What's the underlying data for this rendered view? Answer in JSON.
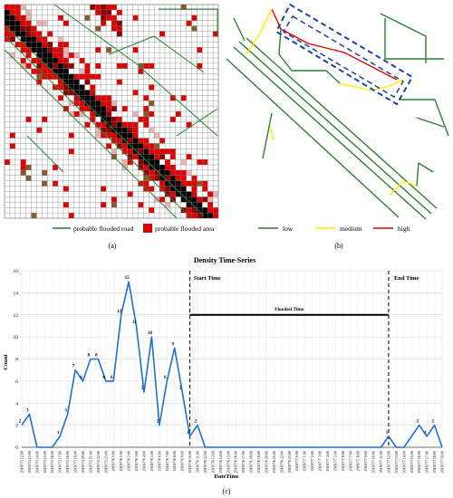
{
  "panel_a": {
    "caption": "(a)",
    "legend_road": "probable flooded road",
    "legend_area": "probable flooded area",
    "road_color": "#2e7d32",
    "flood_colors": [
      "#e00000",
      "#8b0000",
      "#000000",
      "#e8b4b4",
      "#8b5a2b"
    ]
  },
  "panel_b": {
    "caption": "(b)",
    "legend": [
      {
        "label": "low",
        "color": "#2e7d32"
      },
      {
        "label": "medium",
        "color": "#ffee00"
      },
      {
        "label": "high",
        "color": "#e00000"
      }
    ],
    "box_color": "#1f3fa8"
  },
  "panel_c": {
    "caption": "(c)"
  },
  "chart_data": {
    "type": "line",
    "title": "Density Time-Series",
    "xlabel": "DateTime",
    "ylabel": "Count",
    "ylim": [
      0,
      16
    ],
    "yticks": [
      0,
      2,
      4,
      6,
      8,
      10,
      12,
      14,
      16
    ],
    "grid": true,
    "series": [
      {
        "color": "#1f6fd1",
        "values": [
          2,
          3,
          0,
          0,
          0,
          1,
          3,
          7,
          6,
          8,
          8,
          6,
          6,
          12,
          15,
          11,
          5,
          10,
          2,
          6,
          9,
          5,
          1,
          2,
          0,
          0,
          0,
          0,
          0,
          0,
          0,
          0,
          0,
          0,
          0,
          0,
          0,
          0,
          0,
          0,
          0,
          0,
          0,
          0,
          0,
          0,
          0,
          0,
          1,
          0,
          0,
          1,
          2,
          1,
          2,
          0
        ]
      }
    ],
    "categories": [
      "2018/7/5 12:00",
      "2018/7/5 13:00",
      "2018/7/5 14:00",
      "2018/7/5 15:00",
      "2018/7/5 16:00",
      "2018/7/5 17:00",
      "2018/7/5 18:00",
      "2018/7/5 19:00",
      "2018/7/5 20:00",
      "2018/7/5 21:00",
      "2018/7/5 22:00",
      "2018/7/5 23:00",
      "2018/7/6 0:00",
      "2018/7/6 1:00",
      "2018/7/6 2:00",
      "2018/7/6 3:00",
      "2018/7/6 4:00",
      "2018/7/6 5:00",
      "2018/7/6 6:00",
      "2018/7/6 7:00",
      "2018/7/6 8:00",
      "2018/7/6 9:00",
      "2018/7/6 10:00",
      "2018/7/6 11:00",
      "2018/7/6 12:00",
      "2018/7/6 13:00",
      "2018/7/6 14:00",
      "2018/7/6 15:00",
      "2018/7/6 16:00",
      "2018/7/6 17:00",
      "2018/7/6 18:00",
      "2018/7/6 19:00",
      "2018/7/6 20:00",
      "2018/7/6 21:00",
      "2018/7/6 22:00",
      "2018/7/6 23:00",
      "2018/7/7 0:00",
      "2018/7/7 1:00",
      "2018/7/7 2:00",
      "2018/7/7 3:00",
      "2018/7/7 4:00",
      "2018/7/7 5:00",
      "2018/7/7 6:00",
      "2018/7/7 7:00",
      "2018/7/7 8:00",
      "2018/7/7 9:00",
      "2018/7/7 10:00",
      "2018/7/7 11:00",
      "2018/7/7 12:00",
      "2018/7/7 13:00",
      "2018/7/7 14:00",
      "2018/7/7 15:00",
      "2018/7/7 16:00",
      "2018/7/7 17:00",
      "2018/7/7 18:00",
      "2018/7/7 19:00"
    ],
    "labeled_points": [
      {
        "x": "2018/7/5 12:00",
        "y": 2,
        "label": "2"
      },
      {
        "x": "2018/7/5 13:00",
        "y": 3,
        "label": "3"
      },
      {
        "x": "2018/7/5 17:00",
        "y": 1,
        "label": "1"
      },
      {
        "x": "2018/7/5 18:00",
        "y": 3,
        "label": "3"
      },
      {
        "x": "2018/7/5 19:00",
        "y": 7,
        "label": "7"
      },
      {
        "x": "2018/7/5 20:00",
        "y": 6,
        "label": "6"
      },
      {
        "x": "2018/7/5 21:00",
        "y": 8,
        "label": "8"
      },
      {
        "x": "2018/7/5 22:00",
        "y": 8,
        "label": "8"
      },
      {
        "x": "2018/7/5 23:00",
        "y": 6,
        "label": "6"
      },
      {
        "x": "2018/7/6 0:00",
        "y": 6,
        "label": "6"
      },
      {
        "x": "2018/7/6 1:00",
        "y": 12,
        "label": "12"
      },
      {
        "x": "2018/7/6 2:00",
        "y": 15,
        "label": "15"
      },
      {
        "x": "2018/7/6 3:00",
        "y": 11,
        "label": "11"
      },
      {
        "x": "2018/7/6 4:00",
        "y": 5,
        "label": "5"
      },
      {
        "x": "2018/7/6 5:00",
        "y": 10,
        "label": "10"
      },
      {
        "x": "2018/7/6 6:00",
        "y": 2,
        "label": "2"
      },
      {
        "x": "2018/7/6 7:00",
        "y": 6,
        "label": "6"
      },
      {
        "x": "2018/7/6 8:00",
        "y": 9,
        "label": "9"
      },
      {
        "x": "2018/7/6 9:00",
        "y": 5,
        "label": "5"
      },
      {
        "x": "2018/7/6 10:00",
        "y": 1,
        "label": "1"
      },
      {
        "x": "2018/7/6 11:00",
        "y": 2,
        "label": "2"
      },
      {
        "x": "2018/7/7 12:00",
        "y": 1,
        "label": "1"
      },
      {
        "x": "2018/7/7 16:00",
        "y": 2,
        "label": "2"
      },
      {
        "x": "2018/7/7 17:00",
        "y": 1,
        "label": "1"
      },
      {
        "x": "2018/7/7 18:00",
        "y": 2,
        "label": "2"
      }
    ],
    "annotations": {
      "start": {
        "label": "Start Time",
        "x": "2018/7/6 10:00"
      },
      "end": {
        "label": "End Time",
        "x": "2018/7/7 12:00"
      },
      "flooded": {
        "label": "Flooded Time",
        "y": 12,
        "from": "2018/7/6 10:00",
        "to": "2018/7/7 12:00"
      }
    }
  }
}
